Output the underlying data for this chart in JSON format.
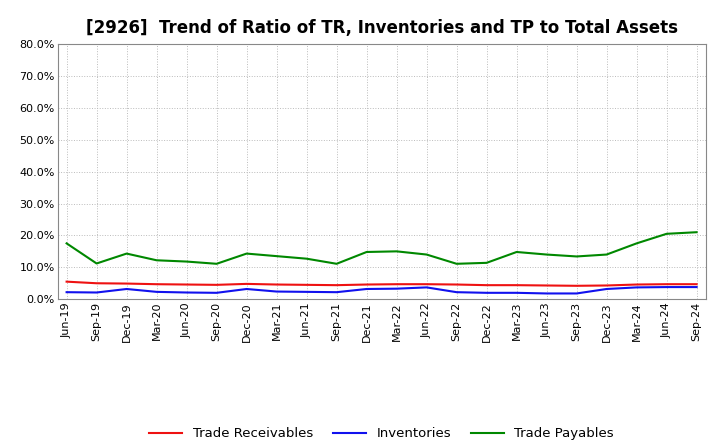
{
  "title": "[2926]  Trend of Ratio of TR, Inventories and TP to Total Assets",
  "background_color": "#FFFFFF",
  "plot_bg_color": "#FFFFFF",
  "ylim": [
    0.0,
    0.8
  ],
  "yticks": [
    0.0,
    0.1,
    0.2,
    0.3,
    0.4,
    0.5,
    0.6,
    0.7,
    0.8
  ],
  "labels": [
    "Jun-19",
    "Sep-19",
    "Dec-19",
    "Mar-20",
    "Jun-20",
    "Sep-20",
    "Dec-20",
    "Mar-21",
    "Jun-21",
    "Sep-21",
    "Dec-21",
    "Mar-22",
    "Jun-22",
    "Sep-22",
    "Dec-22",
    "Mar-23",
    "Jun-23",
    "Sep-23",
    "Dec-23",
    "Mar-24",
    "Jun-24",
    "Sep-24"
  ],
  "trade_receivables": [
    0.055,
    0.05,
    0.049,
    0.047,
    0.046,
    0.045,
    0.048,
    0.046,
    0.045,
    0.044,
    0.046,
    0.047,
    0.047,
    0.046,
    0.044,
    0.044,
    0.043,
    0.042,
    0.043,
    0.046,
    0.047,
    0.047
  ],
  "inventories": [
    0.022,
    0.021,
    0.032,
    0.023,
    0.021,
    0.02,
    0.032,
    0.024,
    0.023,
    0.022,
    0.032,
    0.033,
    0.037,
    0.022,
    0.02,
    0.02,
    0.018,
    0.018,
    0.032,
    0.037,
    0.038,
    0.038
  ],
  "trade_payables": [
    0.175,
    0.112,
    0.143,
    0.122,
    0.118,
    0.111,
    0.143,
    0.135,
    0.127,
    0.111,
    0.148,
    0.15,
    0.14,
    0.111,
    0.114,
    0.148,
    0.14,
    0.134,
    0.14,
    0.175,
    0.205,
    0.21
  ],
  "tr_color": "#EE1111",
  "inv_color": "#1111EE",
  "tp_color": "#008800",
  "tr_label": "Trade Receivables",
  "inv_label": "Inventories",
  "tp_label": "Trade Payables",
  "grid_color": "#BBBBBB",
  "title_fontsize": 12,
  "legend_fontsize": 9.5,
  "tick_fontsize": 8
}
